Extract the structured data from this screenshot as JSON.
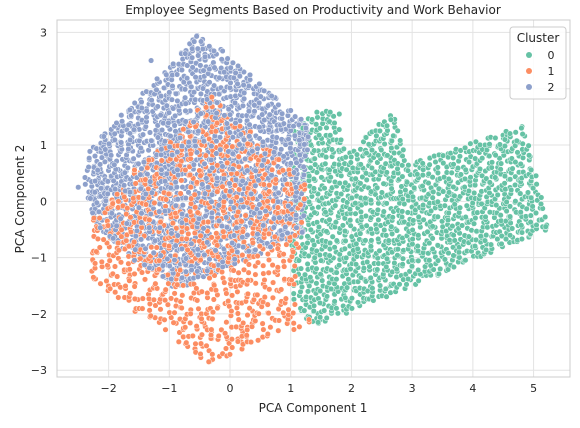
{
  "chart_data": {
    "type": "scatter",
    "title": "Employee Segments Based on Productivity and Work Behavior",
    "xlabel": "PCA Component 1",
    "ylabel": "PCA Component 2",
    "xlim": [
      -2.85,
      5.6
    ],
    "ylim": [
      -3.12,
      3.22
    ],
    "xticks": [
      -2,
      -1,
      0,
      1,
      2,
      3,
      4,
      5
    ],
    "yticks": [
      -3,
      -2,
      -1,
      0,
      1,
      2,
      3
    ],
    "xtick_labels": [
      "−2",
      "−1",
      "0",
      "1",
      "2",
      "3",
      "4",
      "5"
    ],
    "ytick_labels": [
      "−3",
      "−2",
      "−1",
      "0",
      "1",
      "2",
      "3"
    ],
    "grid": true,
    "legend": {
      "title": "Cluster",
      "placement": "top-right",
      "entries": [
        "0",
        "1",
        "2"
      ]
    },
    "series": [
      {
        "name": "0",
        "color": "#66c2a5",
        "region": [
          [
            1.05,
            1.25
          ],
          [
            1.55,
            1.7
          ],
          [
            1.75,
            1.62
          ],
          [
            1.9,
            0.8
          ],
          [
            2.6,
            1.55
          ],
          [
            2.75,
            1.5
          ],
          [
            2.9,
            0.65
          ],
          [
            4.85,
            1.35
          ],
          [
            5.25,
            -0.5
          ],
          [
            1.45,
            -2.2
          ],
          [
            1.3,
            -2.15
          ],
          [
            1.05,
            -1.8
          ],
          [
            1.0,
            -0.3
          ],
          [
            1.0,
            0.9
          ]
        ],
        "points": [
          [
            1.2,
            1.3
          ],
          [
            1.8,
            1.55
          ],
          [
            2.65,
            1.45
          ],
          [
            4.8,
            1.3
          ],
          [
            5.2,
            -0.45
          ],
          [
            1.45,
            -2.15
          ]
        ]
      },
      {
        "name": "1",
        "color": "#fc8d62",
        "region": [
          [
            -1.55,
            0.6
          ],
          [
            -0.3,
            1.9
          ],
          [
            1.25,
            0.3
          ],
          [
            1.05,
            -1.8
          ],
          [
            1.35,
            -2.15
          ],
          [
            -0.35,
            -2.88
          ],
          [
            -2.3,
            -1.4
          ],
          [
            -2.25,
            -0.3
          ]
        ],
        "points": [
          [
            -0.3,
            1.85
          ],
          [
            -2.25,
            -1.35
          ],
          [
            -0.35,
            -2.85
          ],
          [
            1.3,
            -2.1
          ]
        ]
      },
      {
        "name": "2",
        "color": "#8da0cb",
        "region": [
          [
            -2.45,
            0.3
          ],
          [
            -2.3,
            0.95
          ],
          [
            -0.55,
            2.95
          ],
          [
            -0.15,
            2.7
          ],
          [
            1.3,
            1.35
          ],
          [
            1.2,
            -0.6
          ],
          [
            -0.9,
            -1.6
          ],
          [
            -2.0,
            -0.7
          ],
          [
            -2.25,
            -0.3
          ]
        ],
        "points": [
          [
            -0.55,
            2.93
          ],
          [
            -1.3,
            2.5
          ],
          [
            -1.9,
            1.2
          ],
          [
            -2.5,
            0.25
          ],
          [
            -2.3,
            0.05
          ],
          [
            1.25,
            1.3
          ]
        ]
      }
    ]
  }
}
